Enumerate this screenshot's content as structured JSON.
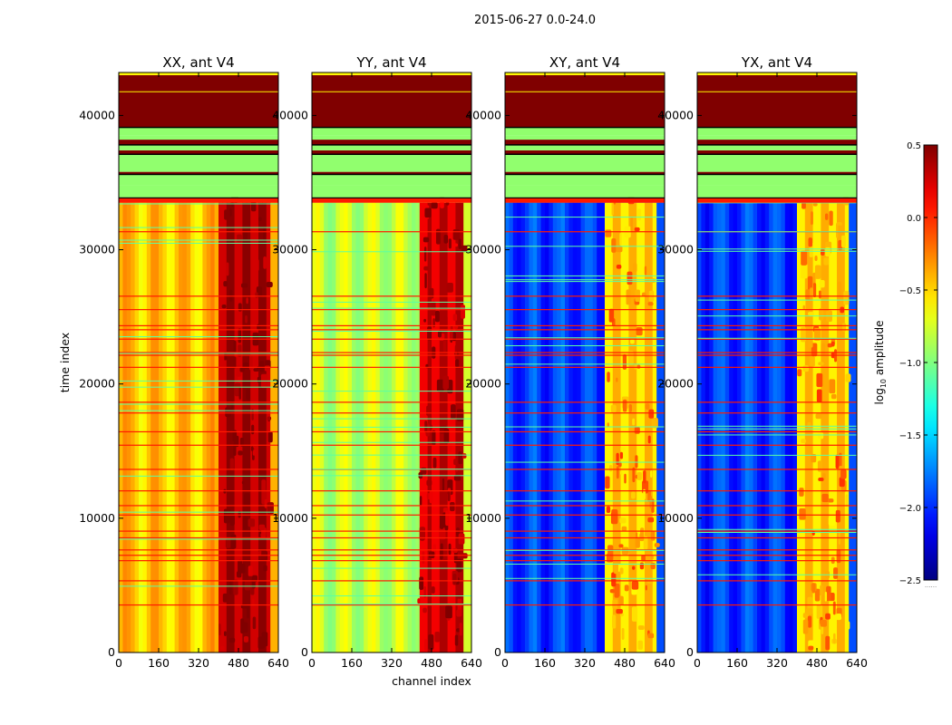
{
  "figure": {
    "suptitle": "2015-06-27 0.0-24.0",
    "xlabel": "channel index",
    "ylabel": "time index"
  },
  "colorbar": {
    "label_prefix": "log",
    "label_sub": "10",
    "label_suffix": " amplitude",
    "ticks": [
      "0.5",
      "0.0",
      "−0.5",
      "−1.0",
      "−1.5",
      "−2.0",
      "−2.5"
    ],
    "dots": "......"
  },
  "chart_data": {
    "type": "heatmap",
    "colormap": "jet",
    "vmin": -2.5,
    "vmax": 0.5,
    "x_ticks": [
      0,
      160,
      320,
      480,
      640
    ],
    "x_tick_labels": [
      "0",
      "160",
      "320",
      "480",
      "640"
    ],
    "y_ticks": [
      0,
      10000,
      20000,
      30000,
      40000
    ],
    "y_tick_labels": [
      "0",
      "10000",
      "20000",
      "30000",
      "40000"
    ],
    "xlim": [
      0,
      640
    ],
    "ylim": [
      0,
      43200
    ],
    "data_region_end": 33500,
    "top_blocks": [
      {
        "from": 33500,
        "to": 33900,
        "value": 0.05
      },
      {
        "from": 33900,
        "to": 34800,
        "value": -0.95
      },
      {
        "from": 34800,
        "to": 35600,
        "value": -0.95
      },
      {
        "from": 35600,
        "to": 35800,
        "value": 0.5
      },
      {
        "from": 35800,
        "to": 37100,
        "value": -0.95
      },
      {
        "from": 37100,
        "to": 37400,
        "value": 0.5
      },
      {
        "from": 37400,
        "to": 37800,
        "value": -0.95
      },
      {
        "from": 37800,
        "to": 38200,
        "value": 0.5
      },
      {
        "from": 38200,
        "to": 38500,
        "value": -0.95
      },
      {
        "from": 38500,
        "to": 39100,
        "value": -0.95
      },
      {
        "from": 39100,
        "to": 43000,
        "value": 0.5
      },
      {
        "from": 43000,
        "to": 43200,
        "value": -0.6
      }
    ],
    "flag_rows": [
      3500,
      5300,
      6800,
      7200,
      7600,
      8500,
      9000,
      10200,
      10900,
      12000,
      13600,
      15400,
      16400,
      17800,
      18600,
      21200,
      22100,
      22300,
      23300,
      24000,
      24300,
      25500,
      26500,
      31300
    ],
    "panels": [
      {
        "title": "XX, ant V4",
        "base": -0.45,
        "rfi": 0.35,
        "band_lo": 400
      },
      {
        "title": "YY, ant V4",
        "base": -0.8,
        "rfi": 0.25,
        "band_lo": 420
      },
      {
        "title": "XY, ant V4",
        "base": -1.95,
        "rfi": -0.5,
        "band_lo": 400
      },
      {
        "title": "YX, ant V4",
        "base": -1.95,
        "rfi": -0.5,
        "band_lo": 400
      }
    ]
  }
}
